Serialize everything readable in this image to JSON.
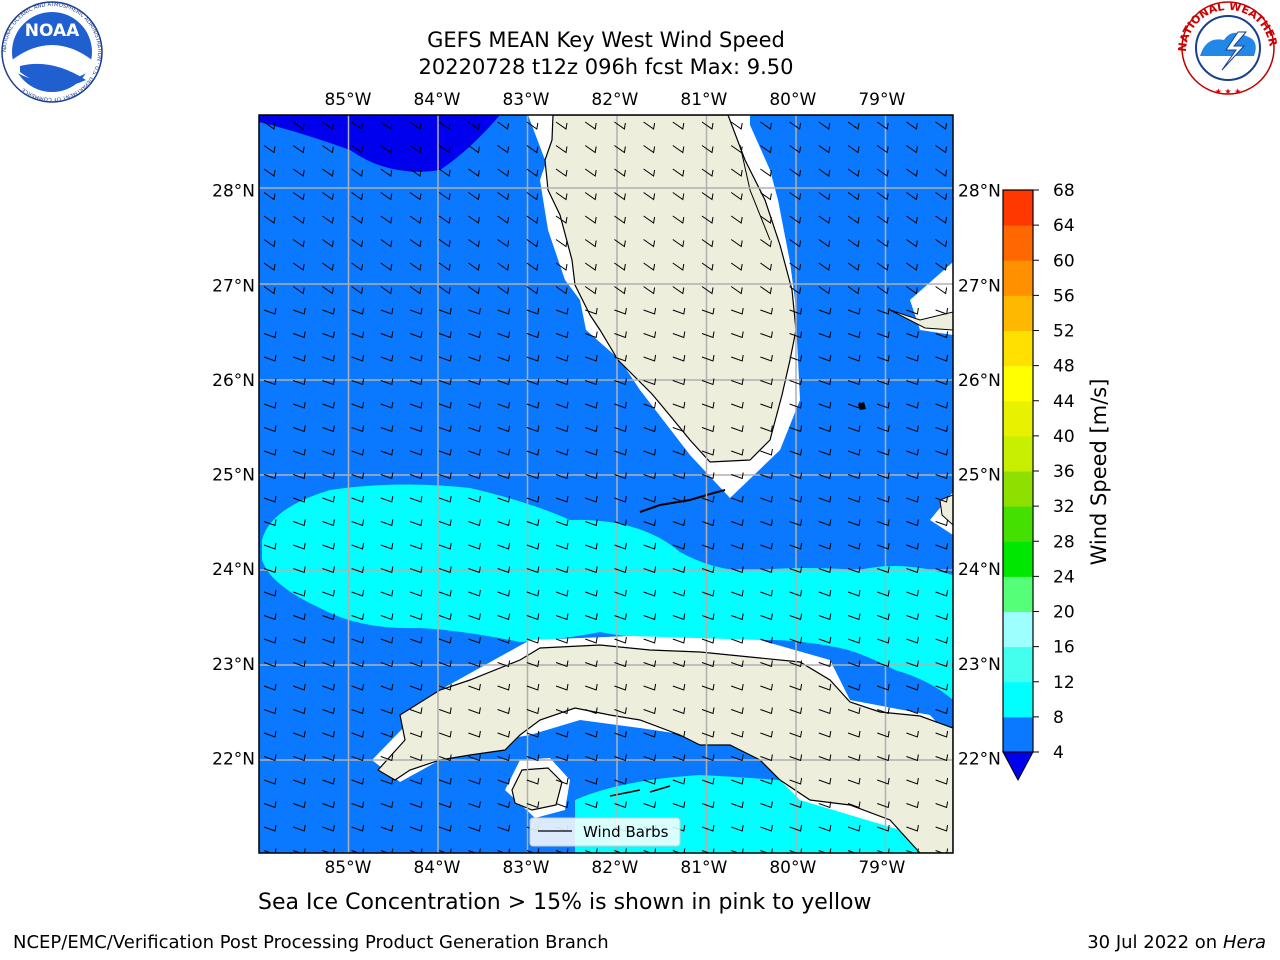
{
  "title_line1": "GEFS MEAN Key West Wind Speed",
  "title_line2": "20220728 t12z 096h fcst   Max: 9.50",
  "note": "Sea Ice Concentration > 15% is shown in pink to yellow",
  "footer": {
    "left": "NCEP/EMC/Verification Post Processing Product Generation Branch",
    "right_date": "30 Jul 2022 on ",
    "right_host": "Hera"
  },
  "logos": {
    "left": "NOAA",
    "left_ring": "NATIONAL OCEANIC AND ATMOSPHERIC ADMINISTRATION · U.S. DEPARTMENT OF COMMERCE",
    "right_ring": "NATIONAL WEATHER SERVICE"
  },
  "legend": {
    "label": "Wind Barbs"
  },
  "axes": {
    "lon_ticks": [
      "85°W",
      "84°W",
      "83°W",
      "82°W",
      "81°W",
      "80°W",
      "79°W"
    ],
    "lon_values": [
      -85,
      -84,
      -83,
      -82,
      -81,
      -80,
      -79
    ],
    "lat_ticks": [
      "28°N",
      "27°N",
      "26°N",
      "25°N",
      "24°N",
      "23°N",
      "22°N"
    ],
    "lat_values": [
      28,
      27,
      26,
      25,
      24,
      23,
      22
    ],
    "lon_range": [
      -86.0,
      -78.2
    ],
    "lat_range": [
      21.0,
      28.8
    ]
  },
  "colorbar": {
    "title": "Wind Speed [m/s]",
    "ticks": [
      "68",
      "64",
      "60",
      "56",
      "52",
      "48",
      "44",
      "40",
      "36",
      "32",
      "28",
      "24",
      "20",
      "16",
      "12",
      "8",
      "4"
    ],
    "levels": [
      4,
      8,
      12,
      16,
      20,
      24,
      28,
      32,
      36,
      40,
      44,
      48,
      52,
      56,
      60,
      64,
      68
    ],
    "colors": [
      "#0a78ff",
      "#00ffff",
      "#44ffee",
      "#9effff",
      "#55ff77",
      "#00e800",
      "#44e000",
      "#8de000",
      "#c8ef00",
      "#e8f200",
      "#ffff00",
      "#ffe000",
      "#ffb800",
      "#ff9000",
      "#ff6800",
      "#ff3800",
      "#ff0000"
    ],
    "under_color": "#0000ee"
  },
  "colors": {
    "ocean_base": "#0a78ff",
    "ocean_dark": "#0000ee",
    "ocean_light": "#00ffff",
    "land": "#eeeedd",
    "grid": "#b0b0b0"
  }
}
